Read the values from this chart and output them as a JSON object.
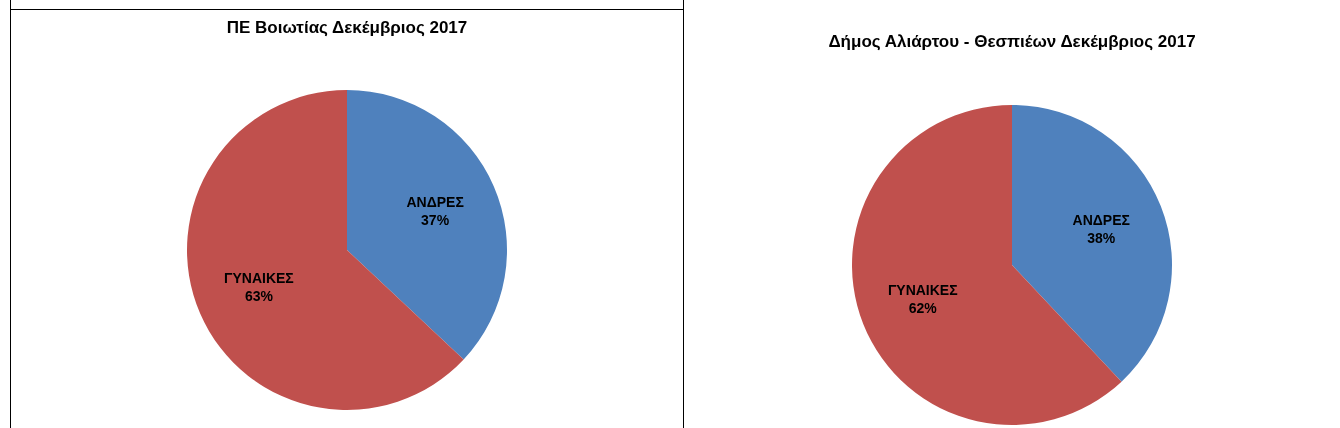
{
  "chart_data": [
    {
      "type": "pie",
      "title": "ΠΕ Βοιωτίας Δεκέμβριος 2017",
      "categories": [
        "ΑΝΔΡΕΣ",
        "ΓΥΝΑΙΚΕΣ"
      ],
      "values": [
        37,
        63
      ],
      "colors": [
        "#4f81bd",
        "#c0504d"
      ],
      "value_labels": [
        "37%",
        "63%"
      ]
    },
    {
      "type": "pie",
      "title": "Δήμος Αλιάρτου - Θεσπιέων Δεκέμβριος 2017",
      "categories": [
        "ΑΝΔΡΕΣ",
        "ΓΥΝΑΙΚΕΣ"
      ],
      "values": [
        38,
        62
      ],
      "colors": [
        "#4f81bd",
        "#c0504d"
      ],
      "value_labels": [
        "38%",
        "62%"
      ]
    }
  ]
}
